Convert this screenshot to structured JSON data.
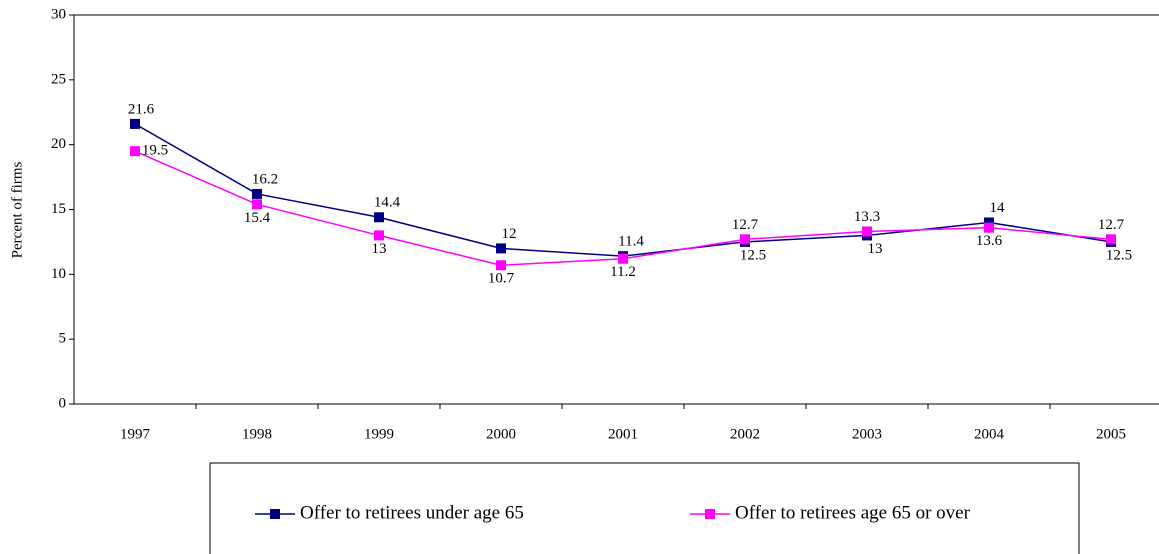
{
  "chart_data": {
    "type": "line",
    "y_label": "Percent of firms",
    "categories": [
      "1997",
      "1998",
      "1999",
      "2000",
      "2001",
      "2002",
      "2003",
      "2004",
      "2005"
    ],
    "series": [
      {
        "name": "Offer to retirees under age 65",
        "color": "#000080",
        "values": [
          21.6,
          16.2,
          14.4,
          12,
          11.4,
          12.5,
          13,
          14,
          12.5
        ]
      },
      {
        "name": "Offer to retirees age 65 or over",
        "color": "#ff00ff",
        "values": [
          19.5,
          15.4,
          13,
          10.7,
          11.2,
          12.7,
          13.3,
          13.6,
          12.7
        ]
      }
    ],
    "ylim": [
      0,
      30
    ],
    "yticks": [
      0,
      5,
      10,
      15,
      20,
      25,
      30
    ],
    "data_labels": true
  }
}
